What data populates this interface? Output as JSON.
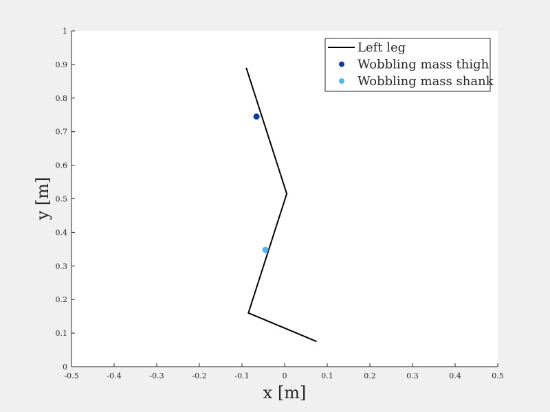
{
  "chart_data": {
    "type": "line",
    "xlabel": "x [m]",
    "ylabel": "y [m]",
    "xlim": [
      -0.5,
      0.5
    ],
    "ylim": [
      0,
      1
    ],
    "xticks": [
      "-0.5",
      "-0.4",
      "-0.3",
      "-0.2",
      "-0.1",
      "0",
      "0.1",
      "0.2",
      "0.3",
      "0.4",
      "0.5"
    ],
    "yticks": [
      "0",
      "0.1",
      "0.2",
      "0.3",
      "0.4",
      "0.5",
      "0.6",
      "0.7",
      "0.8",
      "0.9",
      "1"
    ],
    "grid": false,
    "legend_position": "top-right",
    "series": [
      {
        "name": "Left leg",
        "type": "line",
        "color": "#000000",
        "x": [
          -0.09,
          0.005,
          -0.085,
          0.075
        ],
        "y": [
          0.89,
          0.515,
          0.16,
          0.075
        ]
      },
      {
        "name": "Wobbling mass thigh",
        "type": "scatter",
        "color": "#0e3c9a",
        "x": [
          -0.066
        ],
        "y": [
          0.745
        ]
      },
      {
        "name": "Wobbling mass shank",
        "type": "scatter",
        "color": "#4db8f0",
        "x": [
          -0.045
        ],
        "y": [
          0.348
        ]
      }
    ]
  }
}
